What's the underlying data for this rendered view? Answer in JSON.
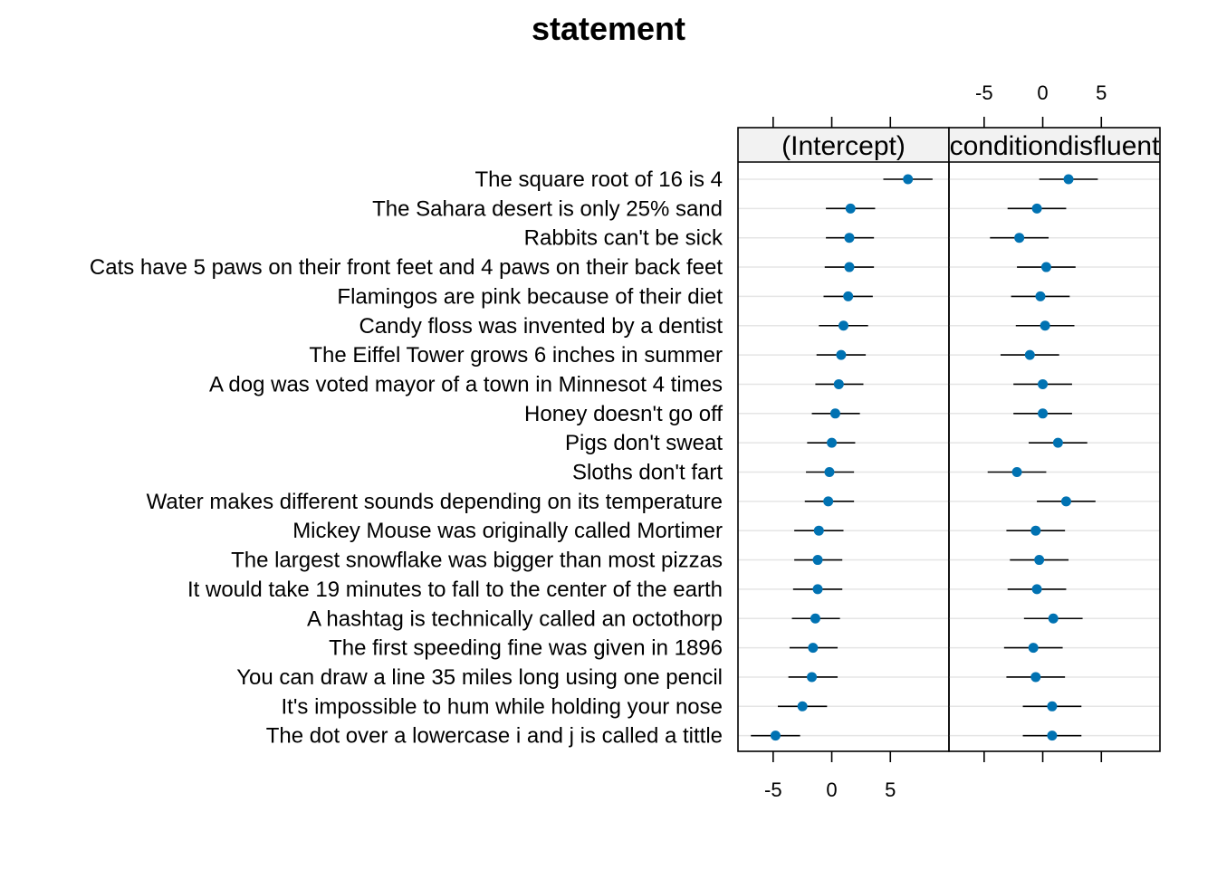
{
  "colors": {
    "point": "#0072b2",
    "errorbar": "#000000",
    "grid": "#e5e5e5",
    "strip": "#f2f2f2",
    "frame": "#000000"
  },
  "chart_data": {
    "type": "scatter",
    "title": "statement",
    "xlim": [
      -8,
      10
    ],
    "ticks": [
      -5,
      0,
      5
    ],
    "grid": true,
    "categories": [
      "The square root of 16 is 4",
      "The Sahara desert is only 25% sand",
      "Rabbits can't be sick",
      "Cats have 5 paws on their front feet and 4 paws on their back feet",
      "Flamingos are pink because of their diet",
      "Candy floss was invented by a dentist",
      "The Eiffel Tower grows 6 inches in summer",
      "A dog was voted mayor of a town in Minnesot 4 times",
      "Honey doesn't go off",
      "Pigs don't sweat",
      "Sloths don't fart",
      "Water makes different sounds depending on its temperature",
      "Mickey Mouse was originally called Mortimer",
      "The largest snowflake was bigger than most pizzas",
      "It would take 19 minutes to fall to the center of the earth",
      "A hashtag is technically called an octothorp",
      "The first speeding fine was given in 1896",
      "You can draw a line 35 miles long using one pencil",
      "It's impossible to hum while holding your nose",
      "The dot over a lowercase i and j is called a tittle"
    ],
    "panels": [
      {
        "name": "(Intercept)",
        "estimates": [
          6.5,
          1.6,
          1.5,
          1.5,
          1.4,
          1.0,
          0.8,
          0.6,
          0.3,
          0.0,
          -0.2,
          -0.3,
          -1.1,
          -1.2,
          -1.2,
          -1.4,
          -1.6,
          -1.7,
          -2.5,
          -4.8
        ],
        "lower": [
          4.4,
          -0.5,
          -0.5,
          -0.6,
          -0.7,
          -1.1,
          -1.3,
          -1.4,
          -1.7,
          -2.1,
          -2.2,
          -2.3,
          -3.2,
          -3.2,
          -3.3,
          -3.4,
          -3.6,
          -3.7,
          -4.6,
          -6.9
        ],
        "upper": [
          8.6,
          3.7,
          3.6,
          3.6,
          3.5,
          3.1,
          2.9,
          2.7,
          2.4,
          2.0,
          1.9,
          1.9,
          1.0,
          0.9,
          0.9,
          0.7,
          0.5,
          0.5,
          -0.4,
          -2.7
        ]
      },
      {
        "name": "conditiondisfluent",
        "estimates": [
          2.2,
          -0.5,
          -2.0,
          0.3,
          -0.2,
          0.2,
          -1.1,
          0.0,
          0.0,
          1.3,
          -2.2,
          2.0,
          -0.6,
          -0.3,
          -0.5,
          0.9,
          -0.8,
          -0.6,
          0.8,
          0.8
        ],
        "lower": [
          -0.3,
          -3.0,
          -4.5,
          -2.2,
          -2.7,
          -2.3,
          -3.6,
          -2.5,
          -2.5,
          -1.2,
          -4.7,
          -0.5,
          -3.1,
          -2.8,
          -3.0,
          -1.6,
          -3.3,
          -3.1,
          -1.7,
          -1.7
        ],
        "upper": [
          4.7,
          2.0,
          0.5,
          2.8,
          2.3,
          2.7,
          1.4,
          2.5,
          2.5,
          3.8,
          0.3,
          4.5,
          1.9,
          2.2,
          2.0,
          3.4,
          1.7,
          1.9,
          3.3,
          3.3
        ]
      }
    ]
  }
}
